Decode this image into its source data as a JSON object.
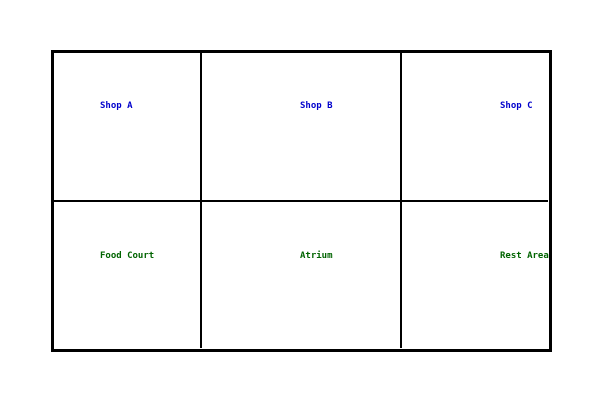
{
  "map": {
    "zones": {
      "shop_a": "Shop A",
      "shop_b": "Shop B",
      "shop_c": "Shop C",
      "food_court": "Food Court",
      "atrium": "Atrium",
      "rest_area": "Rest Area"
    },
    "colors": {
      "shop_label": "#0000cc",
      "area_label": "#006400",
      "wall": "#000000",
      "background": "#ffffff"
    }
  }
}
